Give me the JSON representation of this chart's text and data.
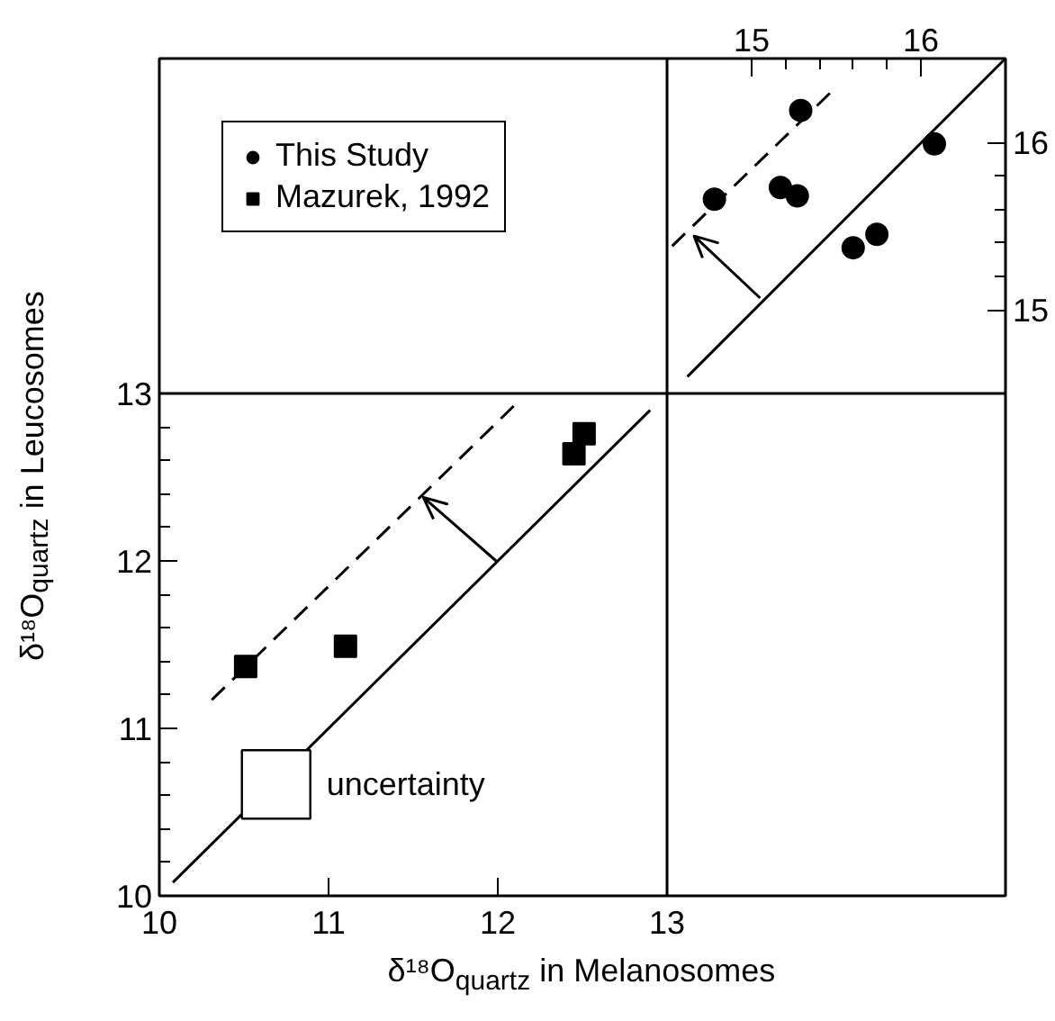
{
  "chart_data": [
    {
      "type": "scatter",
      "xlabel": "δ¹⁸O$_{quartz}$ in Melanosomes",
      "ylabel": "δ¹⁸O$_{quartz}$ in Leucosomes",
      "xlim": [
        10,
        13
      ],
      "ylim": [
        10,
        13
      ],
      "xticks": [
        10,
        11,
        12,
        13
      ],
      "yticks": [
        10,
        11,
        12,
        13
      ],
      "legend": "top left",
      "annotations": [
        {
          "text": "uncertainty",
          "x": 10.69,
          "y": 10.665
        }
      ],
      "series": [
        {
          "name": "Mazurek, 1992",
          "marker": "square",
          "color": "#000000",
          "x": [
            10.51,
            11.1,
            12.45,
            12.51
          ],
          "values": [
            11.37,
            11.49,
            12.64,
            12.76
          ]
        },
        {
          "type": "line",
          "line_style": "solid",
          "color": "#000000",
          "x": [
            10.08,
            12.9
          ],
          "values": [
            10.08,
            12.9
          ]
        },
        {
          "type": "line",
          "line_style": "dashed",
          "color": "#000000",
          "x": [
            10.31,
            12.13
          ],
          "values": [
            11.17,
            12.96
          ]
        },
        {
          "type": "line",
          "line_style": "solid",
          "color": "#000000",
          "x": [
            11.99,
            11.56,
            11.7,
            11.56,
            11.62
          ],
          "values": [
            12.0,
            12.38,
            12.34,
            12.38,
            12.25
          ]
        }
      ]
    },
    {
      "type": "scatter",
      "xlim": [
        14.5,
        16.5
      ],
      "ylim": [
        14.5,
        16.5
      ],
      "xticks": [
        15,
        16
      ],
      "yticks": [
        15,
        16
      ],
      "series": [
        {
          "name": "This Study",
          "marker": "circle",
          "color": "#000000",
          "x": [
            15.29,
            14.78,
            15.17,
            15.27,
            15.6,
            15.74,
            16.08
          ],
          "values": [
            16.19,
            15.66,
            15.73,
            15.68,
            15.37,
            15.45,
            15.99
          ]
        },
        {
          "type": "line",
          "line_style": "solid",
          "color": "#000000",
          "x": [
            14.62,
            16.5
          ],
          "values": [
            14.6,
            16.5
          ]
        },
        {
          "type": "line",
          "line_style": "dashed",
          "color": "#000000",
          "x": [
            14.53,
            15.49
          ],
          "values": [
            15.38,
            16.32
          ]
        },
        {
          "type": "line",
          "line_style": "solid",
          "color": "#000000",
          "x": [
            15.05,
            14.66,
            14.8,
            14.66,
            14.71
          ],
          "values": [
            15.07,
            15.44,
            15.4,
            15.44,
            15.31
          ]
        }
      ]
    }
  ]
}
